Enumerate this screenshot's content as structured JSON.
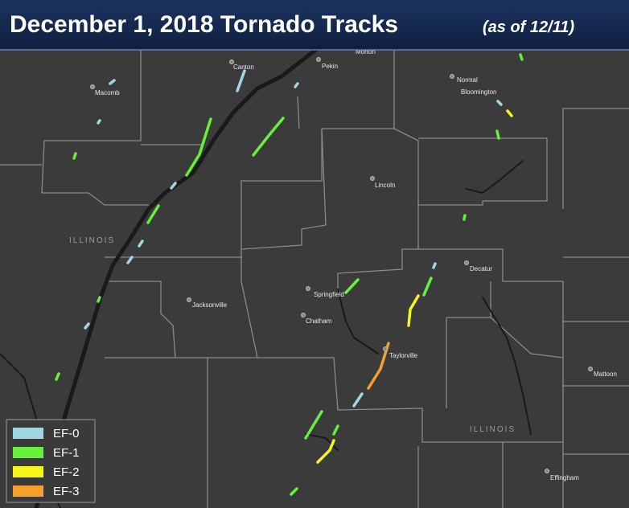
{
  "header": {
    "title": "December 1, 2018 Tornado Tracks",
    "subtitle": "(as of 12/11)"
  },
  "cities": [
    "Canton",
    "Pekin",
    "Morton",
    "Macomb",
    "Normal",
    "Bloomington",
    "Lincoln",
    "Decatur",
    "Springfield",
    "Chatham",
    "Jacksonville",
    "Taylorville",
    "Mattoon",
    "Effingham"
  ],
  "state_labels": [
    "ILLINOIS",
    "ILLINOIS"
  ],
  "legend": [
    {
      "label": "EF-0",
      "color": "#9fd6e2"
    },
    {
      "label": "EF-1",
      "color": "#66f03a"
    },
    {
      "label": "EF-2",
      "color": "#f5f51a"
    },
    {
      "label": "EF-3",
      "color": "#f5a02a"
    }
  ]
}
